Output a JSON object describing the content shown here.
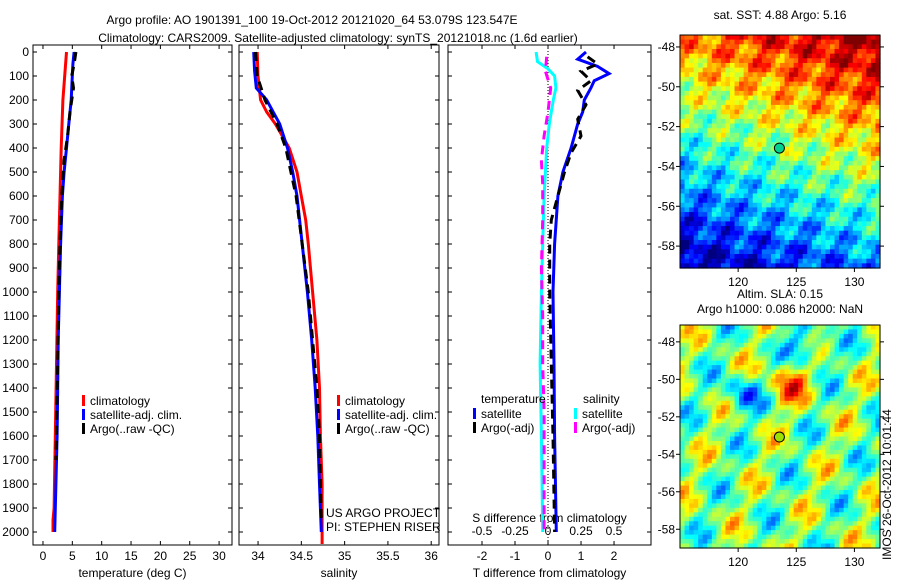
{
  "titles": {
    "line1": "Argo profile: AO 1901391_100 19-Oct-2012 20121020_64 53.079S 123.547E",
    "line2": "Climatology: CARS2009. Satellite-adjusted climatology: synTS_20121018.nc (1.6d earlier)"
  },
  "credits": {
    "line1": "US ARGO PROJECT",
    "line2": "PI: STEPHEN RISER"
  },
  "timestamp": "IMOS 26-Oct-2012 10:01:44",
  "colors": {
    "climatology": "#ff0000",
    "satellite": "#0000ff",
    "argo": "#000000",
    "s_satellite": "#00ffff",
    "s_argo": "#ff00ff"
  },
  "chart_data": [
    {
      "type": "line",
      "id": "temperature",
      "xlabel": "temperature (deg C)",
      "ylabel": "",
      "xlim": [
        -1.7,
        32.2
      ],
      "ylim": [
        2055,
        0
      ],
      "xticks": [
        "0",
        "5",
        "10",
        "15",
        "20",
        "25",
        "30"
      ],
      "yticks": [
        "0",
        "100",
        "200",
        "300",
        "400",
        "500",
        "600",
        "700",
        "800",
        "900",
        "1000",
        "1100",
        "1200",
        "1300",
        "1400",
        "1500",
        "1600",
        "1700",
        "1800",
        "1900",
        "2000"
      ],
      "legend": [
        "climatology",
        "satellite-adj. clim.",
        "Argo(..raw -QC)"
      ],
      "series": [
        {
          "name": "climatology",
          "color": "#ff0000",
          "depth": [
            0,
            100,
            200,
            400,
            600,
            800,
            1000,
            1300,
            1600,
            1900,
            1950,
            2000
          ],
          "values": [
            4.0,
            3.7,
            3.4,
            3.1,
            2.9,
            2.7,
            2.5,
            2.3,
            2.1,
            1.9,
            1.7,
            1.7
          ]
        },
        {
          "name": "satellite-adj. clim.",
          "color": "#0000ff",
          "depth": [
            0,
            50,
            100,
            200,
            300,
            400,
            500,
            600,
            800,
            1000,
            1200,
            1400,
            1600,
            1800,
            2000
          ],
          "values": [
            5.3,
            5.1,
            5.0,
            4.8,
            4.4,
            4.0,
            3.6,
            3.3,
            3.0,
            2.8,
            2.6,
            2.5,
            2.4,
            2.2,
            2.0
          ]
        },
        {
          "name": "Argo(..raw -QC)",
          "color": "#000000",
          "dashed": true,
          "depth": [
            0,
            50,
            100,
            150,
            250,
            350,
            450,
            600,
            800,
            1000,
            1300,
            1600,
            1700
          ],
          "values": [
            5.6,
            5.3,
            4.9,
            5.2,
            4.6,
            4.2,
            3.6,
            3.2,
            2.9,
            2.7,
            2.5,
            2.3,
            2.2
          ]
        }
      ]
    },
    {
      "type": "line",
      "id": "salinity",
      "xlabel": "salinity",
      "xlim": [
        33.78,
        36.09
      ],
      "ylim": [
        2055,
        0
      ],
      "xticks": [
        "34",
        "34.5",
        "35",
        "35.5",
        "36"
      ],
      "legend": [
        "climatology",
        "satellite-adj. clim.",
        "Argo(..raw -QC)"
      ],
      "series": [
        {
          "name": "climatology",
          "color": "#ff0000",
          "depth": [
            0,
            100,
            200,
            250,
            300,
            400,
            500,
            600,
            700,
            800,
            1000,
            1200,
            1400,
            1600,
            1800,
            2000,
            2050
          ],
          "values": [
            33.99,
            34.0,
            34.03,
            34.1,
            34.2,
            34.36,
            34.45,
            34.5,
            34.55,
            34.58,
            34.63,
            34.68,
            34.71,
            34.72,
            34.74,
            34.74,
            34.74
          ]
        },
        {
          "name": "satellite-adj. clim.",
          "color": "#0000ff",
          "depth": [
            0,
            80,
            150,
            200,
            300,
            400,
            500,
            600,
            800,
            1000,
            1200,
            1400,
            1600,
            1800,
            2000
          ],
          "values": [
            33.95,
            33.96,
            33.98,
            34.1,
            34.25,
            34.34,
            34.4,
            34.45,
            34.51,
            34.57,
            34.62,
            34.66,
            34.69,
            34.71,
            34.73
          ]
        },
        {
          "name": "Argo(..raw -QC)",
          "color": "#000000",
          "dashed": true,
          "depth": [
            0,
            100,
            200,
            300,
            400,
            500,
            600,
            800,
            1000,
            1200,
            1400,
            1600,
            1800,
            1950
          ],
          "values": [
            33.97,
            33.99,
            34.08,
            34.22,
            34.32,
            34.38,
            34.44,
            34.51,
            34.58,
            34.63,
            34.68,
            34.71,
            34.72,
            34.73
          ]
        }
      ]
    },
    {
      "type": "line",
      "id": "difference",
      "xlabel": "T difference from climatology",
      "x2label": "S difference from climatology",
      "xlim": [
        -3.03,
        3.12
      ],
      "ylim": [
        2055,
        0
      ],
      "xticks": [
        "-2",
        "-1",
        "0",
        "1",
        "2"
      ],
      "x2ticks": [
        "-0.5",
        "-0.25",
        "0",
        "0.25",
        "0.5"
      ],
      "legend_temperature": {
        "title": "temperature",
        "items": [
          "satellite",
          "Argo(-adj)"
        ]
      },
      "legend_salinity": {
        "title": "salinity",
        "items": [
          "satellite",
          "Argo(-adj)"
        ]
      },
      "series": [
        {
          "name": "T satellite",
          "color": "#0000ff",
          "units": "T",
          "depth": [
            0,
            30,
            60,
            90,
            120,
            150,
            200,
            250,
            300,
            350,
            400,
            500,
            600,
            800,
            1000,
            1300,
            1600,
            2000
          ],
          "values": [
            1.15,
            0.9,
            1.5,
            1.85,
            1.4,
            1.3,
            1.1,
            1.05,
            0.9,
            0.8,
            0.7,
            0.45,
            0.3,
            0.2,
            0.15,
            0.18,
            0.2,
            0.25
          ]
        },
        {
          "name": "T Argo(-adj)",
          "color": "#000000",
          "units": "T",
          "dashed": true,
          "depth": [
            20,
            50,
            80,
            120,
            160,
            220,
            280,
            350,
            420,
            500,
            600,
            700,
            800,
            1000,
            1300,
            1600,
            2000
          ],
          "values": [
            1.2,
            1.5,
            1.0,
            1.3,
            0.9,
            1.15,
            0.9,
            1.0,
            0.7,
            0.5,
            0.3,
            0.1,
            0.05,
            0.05,
            0.1,
            0.15,
            0.2
          ]
        },
        {
          "name": "S satellite",
          "color": "#00ffff",
          "units": "S",
          "depth": [
            0,
            40,
            70,
            100,
            150,
            200,
            300,
            400,
            500,
            600,
            800,
            1000,
            1300,
            1600,
            2000
          ],
          "values": [
            -0.09,
            -0.08,
            0.0,
            0.05,
            0.06,
            0.04,
            0.01,
            -0.01,
            -0.02,
            -0.03,
            -0.04,
            -0.05,
            -0.06,
            -0.05,
            -0.04
          ]
        },
        {
          "name": "S Argo(-adj)",
          "color": "#ff00ff",
          "units": "S",
          "dashed": true,
          "depth": [
            20,
            80,
            150,
            250,
            350,
            450,
            550,
            700,
            900,
            1100,
            1300,
            1500,
            1700,
            1900,
            2000
          ],
          "values": [
            -0.01,
            -0.02,
            0.02,
            0.0,
            -0.03,
            -0.05,
            -0.04,
            -0.04,
            -0.05,
            -0.04,
            -0.04,
            -0.03,
            -0.03,
            -0.03,
            -0.03
          ]
        }
      ]
    },
    {
      "type": "heatmap",
      "id": "sst-map",
      "title": "sat. SST: 4.88 Argo: 5.16",
      "xlim": [
        115,
        132.2
      ],
      "ylim": [
        -59.1,
        -47.4
      ],
      "xticks": [
        "120",
        "125",
        "130"
      ],
      "yticks": [
        "-48",
        "-50",
        "-52",
        "-54",
        "-56",
        "-58"
      ],
      "marker": {
        "lon": 123.547,
        "lat": -53.079
      }
    },
    {
      "type": "heatmap",
      "id": "sla-map",
      "title": "Altim. SLA: 0.15",
      "subtitle": "Argo h1000: 0.086 h2000: NaN",
      "xlim": [
        115,
        132.2
      ],
      "ylim": [
        -59.0,
        -47.1
      ],
      "xticks": [
        "120",
        "125",
        "130"
      ],
      "yticks": [
        "-48",
        "-50",
        "-52",
        "-54",
        "-56",
        "-58"
      ],
      "marker": {
        "lon": 123.547,
        "lat": -53.079
      }
    }
  ]
}
